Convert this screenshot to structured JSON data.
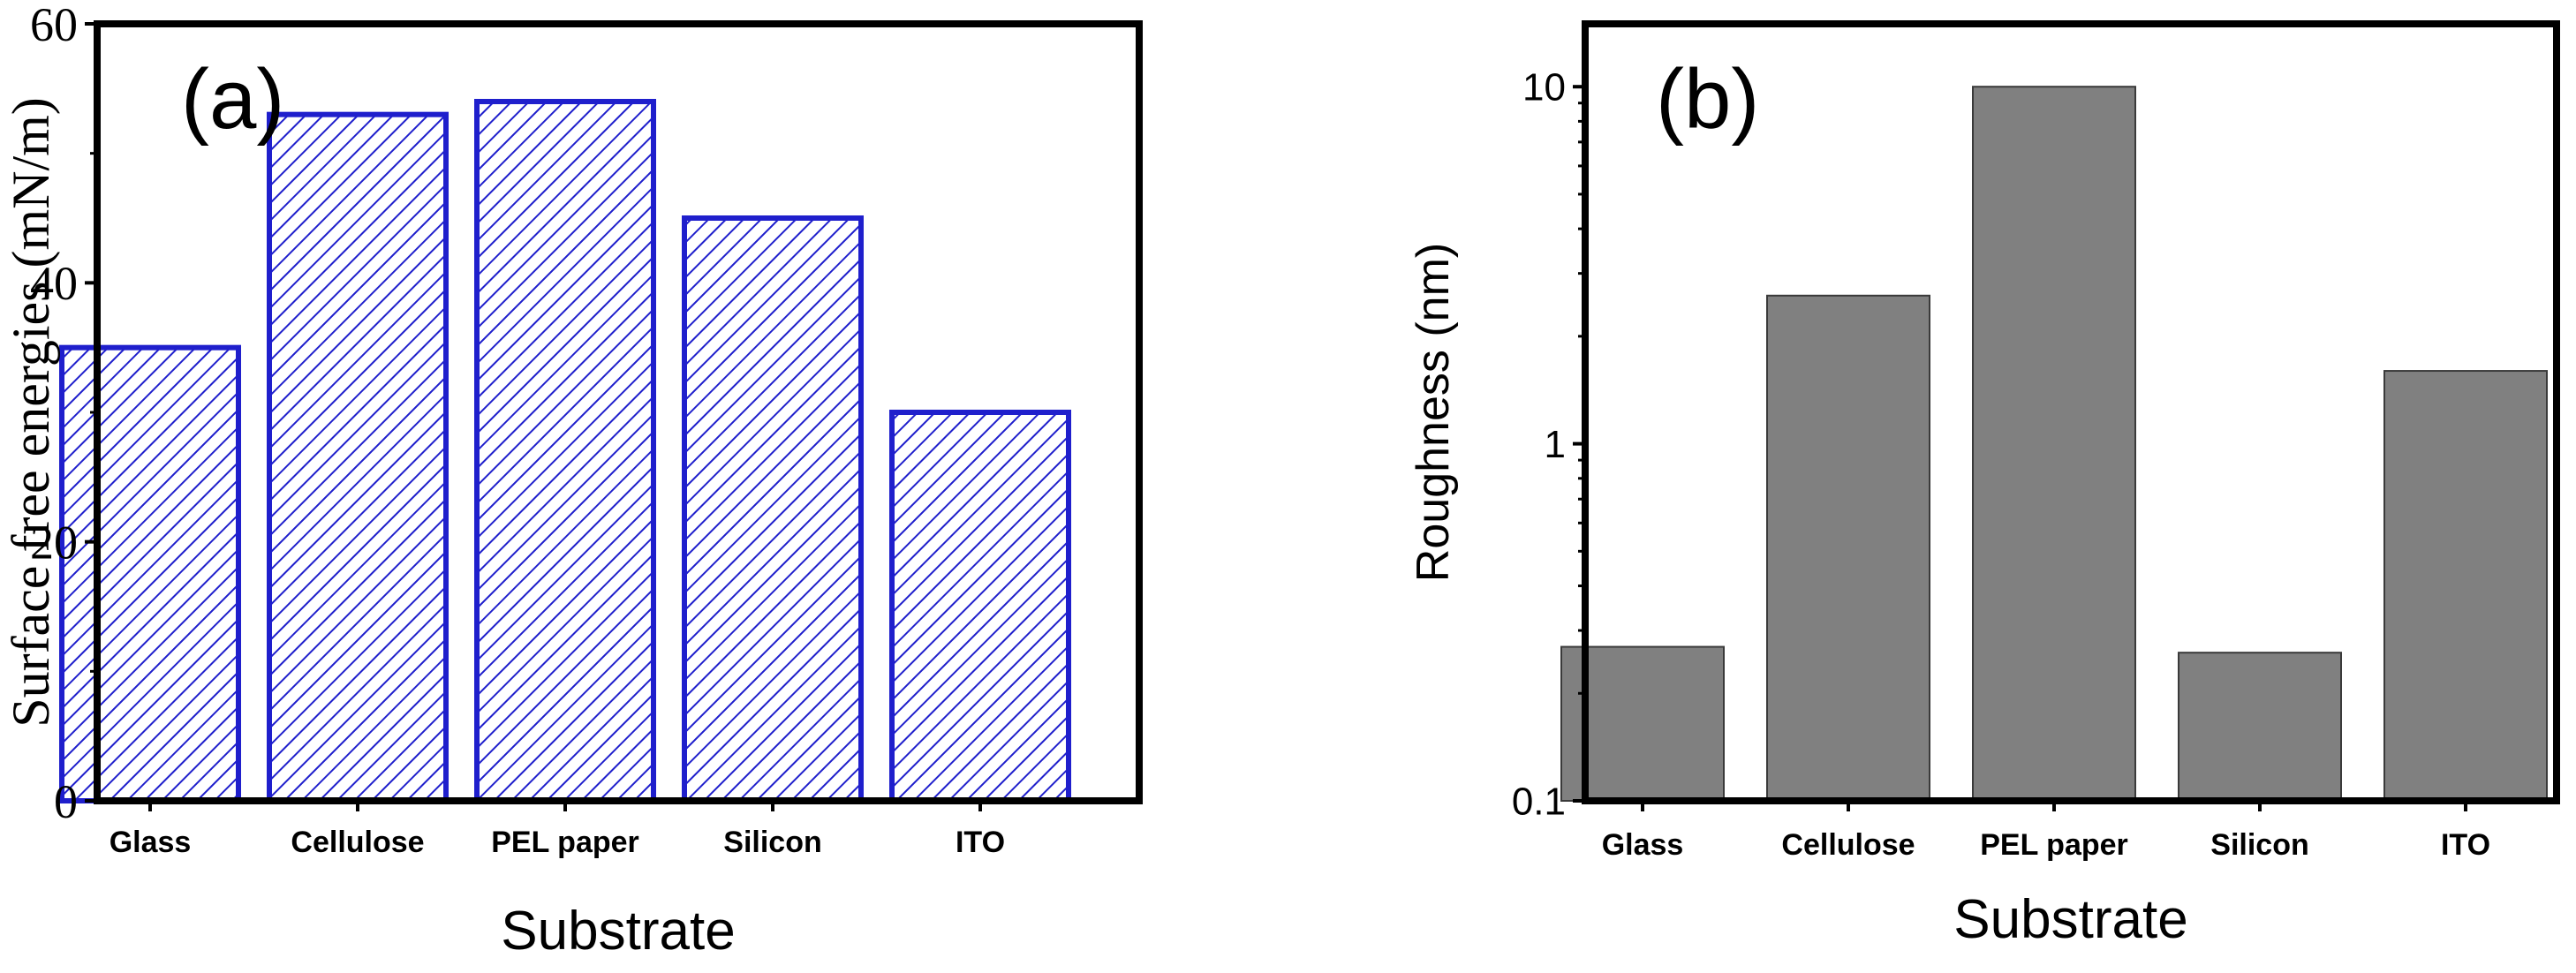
{
  "chart_data": [
    {
      "type": "bar",
      "panel_label": "(a)",
      "categories": [
        "Glass",
        "Cellulose",
        "PEL paper",
        "Silicon",
        "ITO"
      ],
      "values": [
        35,
        53,
        54,
        45,
        30
      ],
      "xlabel": "Substrate",
      "ylabel": "Surface free energies (mN/m)",
      "ylim": [
        0,
        60
      ],
      "yticks": [
        0,
        20,
        40,
        60
      ],
      "ytick_labels": [
        "0",
        "20",
        "40",
        "60"
      ],
      "yscale": "linear",
      "bar_style": "hatched",
      "bar_color": "#1f1fcc",
      "grid": false
    },
    {
      "type": "bar",
      "panel_label": "(b)",
      "categories": [
        "Glass",
        "Cellulose",
        "PEL paper",
        "Silicon",
        "ITO"
      ],
      "values": [
        0.27,
        2.6,
        10,
        0.26,
        1.6
      ],
      "xlabel": "Substrate",
      "ylabel": "Roughness (nm)",
      "ylim": [
        0.1,
        15
      ],
      "yticks": [
        0.1,
        1,
        10
      ],
      "ytick_labels": [
        "0.1",
        "1",
        "10"
      ],
      "yscale": "log",
      "bar_style": "solid",
      "bar_color": "#808080",
      "grid": false
    }
  ]
}
